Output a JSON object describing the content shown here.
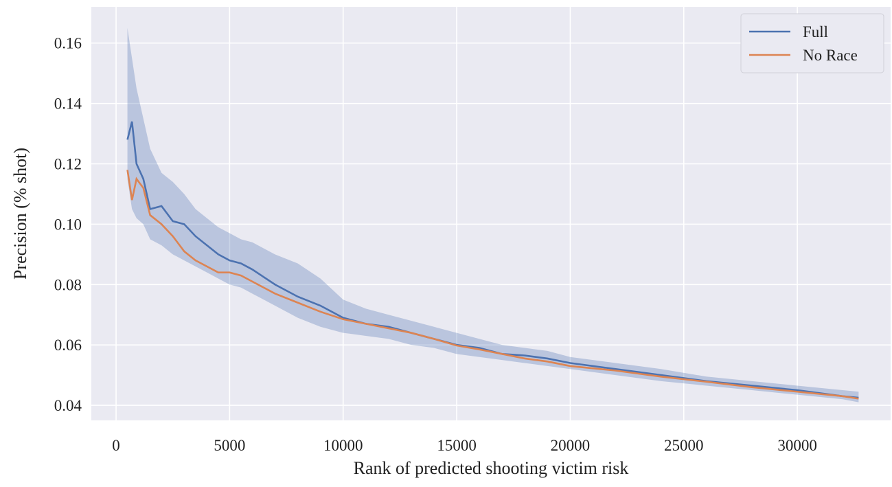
{
  "chart_data": {
    "type": "line",
    "xlabel": "Rank of predicted shooting victim risk",
    "ylabel": "Precision (% shot)",
    "x": [
      500,
      700,
      900,
      1200,
      1500,
      2000,
      2500,
      3000,
      3500,
      4000,
      4500,
      5000,
      5500,
      6000,
      7000,
      8000,
      9000,
      10000,
      11000,
      12000,
      13000,
      14000,
      15000,
      16000,
      17000,
      18000,
      19000,
      20000,
      22000,
      24000,
      26000,
      28000,
      30000,
      32000,
      32700
    ],
    "series": [
      {
        "name": "Full",
        "color": "#4c72b0",
        "values": [
          0.128,
          0.134,
          0.12,
          0.115,
          0.105,
          0.106,
          0.101,
          0.1,
          0.096,
          0.093,
          0.09,
          0.088,
          0.087,
          0.085,
          0.08,
          0.076,
          0.073,
          0.069,
          0.067,
          0.066,
          0.064,
          0.062,
          0.06,
          0.059,
          0.057,
          0.0565,
          0.0555,
          0.054,
          0.052,
          0.05,
          0.048,
          0.0465,
          0.045,
          0.043,
          0.0425
        ],
        "lower": [
          0.115,
          0.105,
          0.102,
          0.1,
          0.095,
          0.093,
          0.09,
          0.088,
          0.086,
          0.084,
          0.082,
          0.08,
          0.079,
          0.077,
          0.073,
          0.069,
          0.066,
          0.064,
          0.063,
          0.062,
          0.06,
          0.059,
          0.057,
          0.056,
          0.055,
          0.054,
          0.053,
          0.052,
          0.05,
          0.048,
          0.0465,
          0.045,
          0.0435,
          0.042,
          0.041
        ],
        "upper": [
          0.165,
          0.155,
          0.145,
          0.135,
          0.125,
          0.117,
          0.114,
          0.11,
          0.105,
          0.102,
          0.099,
          0.097,
          0.095,
          0.094,
          0.09,
          0.087,
          0.082,
          0.075,
          0.072,
          0.07,
          0.068,
          0.066,
          0.064,
          0.062,
          0.06,
          0.059,
          0.058,
          0.056,
          0.054,
          0.052,
          0.0495,
          0.048,
          0.0465,
          0.045,
          0.0445
        ]
      },
      {
        "name": "No Race",
        "color": "#dd8452",
        "values": [
          0.118,
          0.108,
          0.115,
          0.112,
          0.103,
          0.1,
          0.096,
          0.091,
          0.088,
          0.086,
          0.084,
          0.084,
          0.083,
          0.081,
          0.077,
          0.074,
          0.071,
          0.0685,
          0.067,
          0.0655,
          0.064,
          0.062,
          0.0598,
          0.0585,
          0.057,
          0.0555,
          0.0545,
          0.053,
          0.0515,
          0.0495,
          0.0478,
          0.046,
          0.0445,
          0.043,
          0.0422
        ]
      }
    ],
    "xlim": [
      -1090,
      34110
    ],
    "xticks": [
      0,
      5000,
      10000,
      15000,
      20000,
      25000,
      30000
    ],
    "ylim": [
      0.035,
      0.172
    ],
    "yticks": [
      0.04,
      0.06,
      0.08,
      {
        "value": 0.1,
        "label": "0.10"
      },
      0.12,
      0.14,
      0.16
    ],
    "grid": true,
    "legend": "upper right"
  }
}
